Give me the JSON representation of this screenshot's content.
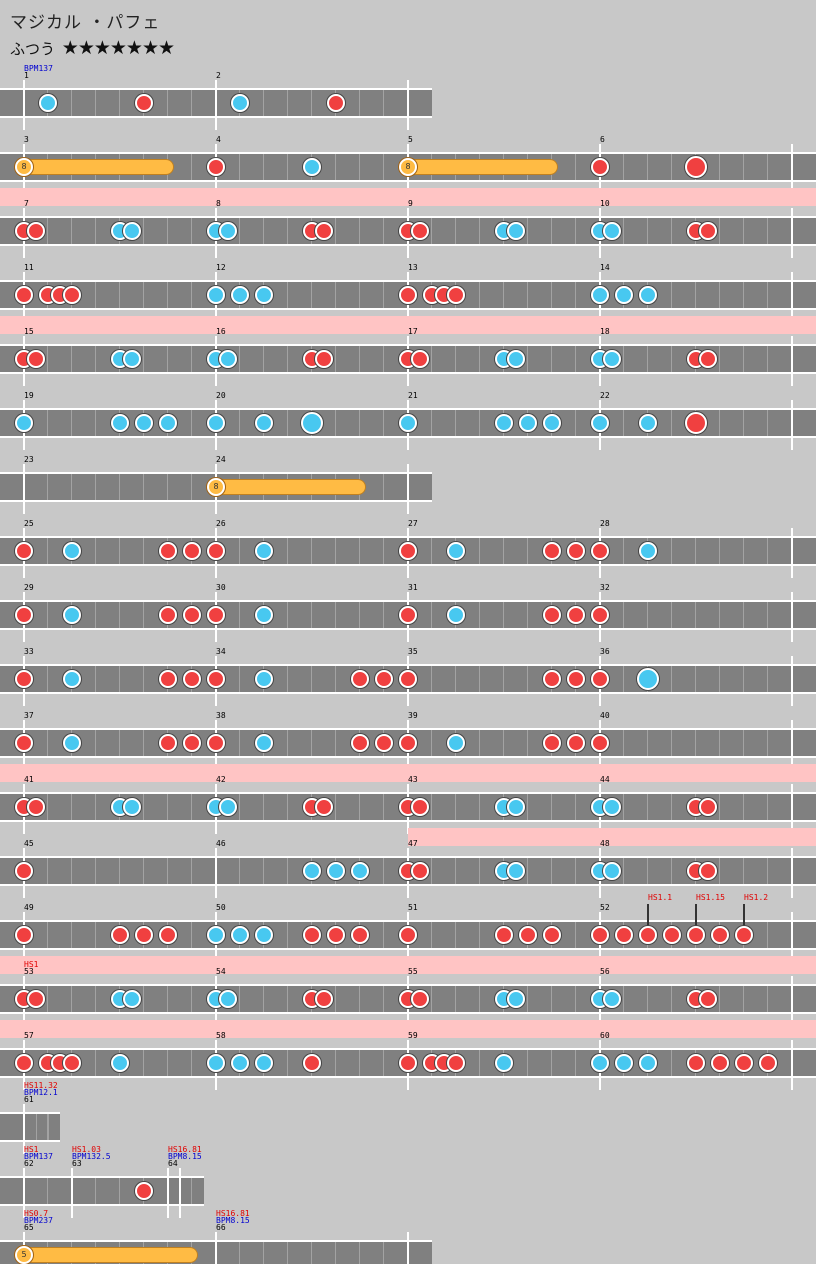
{
  "song": {
    "title": "マジカル ・パフェ",
    "difficulty": "ふつう",
    "stars": "★★★★★★★"
  },
  "rows": [
    {
      "width": 432,
      "measures": [
        "1",
        "2"
      ],
      "annotations": [
        {
          "m": 0,
          "lines": [
            {
              "t": "BPM137",
              "c": "blue"
            }
          ]
        }
      ],
      "notes": [
        [
          48,
          "k"
        ],
        [
          144,
          "d"
        ],
        [
          240,
          "k"
        ],
        [
          336,
          "d"
        ]
      ],
      "rolls": []
    },
    {
      "width": 816,
      "measures": [
        "3",
        "4",
        "5",
        "6"
      ],
      "annotations": [],
      "notes": [
        [
          216,
          "d"
        ],
        [
          312,
          "k"
        ],
        [
          600,
          "d"
        ],
        [
          696,
          "D"
        ]
      ],
      "rolls": [
        [
          24,
          174,
          "8"
        ],
        [
          408,
          558,
          "8"
        ]
      ]
    },
    {
      "width": 816,
      "pink": true,
      "measures": [
        "7",
        "8",
        "9",
        "10"
      ],
      "annotations": [],
      "notes": [
        [
          24,
          "d"
        ],
        [
          36,
          "d"
        ],
        [
          120,
          "k"
        ],
        [
          132,
          "k"
        ],
        [
          216,
          "k"
        ],
        [
          228,
          "k"
        ],
        [
          312,
          "d"
        ],
        [
          324,
          "d"
        ],
        [
          408,
          "d"
        ],
        [
          420,
          "d"
        ],
        [
          504,
          "k"
        ],
        [
          516,
          "k"
        ],
        [
          600,
          "k"
        ],
        [
          612,
          "k"
        ],
        [
          696,
          "d"
        ],
        [
          708,
          "d"
        ]
      ],
      "rolls": []
    },
    {
      "width": 816,
      "measures": [
        "11",
        "12",
        "13",
        "14"
      ],
      "annotations": [],
      "notes": [
        [
          24,
          "d"
        ],
        [
          48,
          "d"
        ],
        [
          60,
          "d"
        ],
        [
          72,
          "d"
        ],
        [
          216,
          "k"
        ],
        [
          240,
          "k"
        ],
        [
          264,
          "k"
        ],
        [
          408,
          "d"
        ],
        [
          432,
          "d"
        ],
        [
          444,
          "d"
        ],
        [
          456,
          "d"
        ],
        [
          600,
          "k"
        ],
        [
          624,
          "k"
        ],
        [
          648,
          "k"
        ]
      ],
      "rolls": []
    },
    {
      "width": 816,
      "pink": true,
      "measures": [
        "15",
        "16",
        "17",
        "18"
      ],
      "annotations": [],
      "notes": [
        [
          24,
          "d"
        ],
        [
          36,
          "d"
        ],
        [
          120,
          "k"
        ],
        [
          132,
          "k"
        ],
        [
          216,
          "k"
        ],
        [
          228,
          "k"
        ],
        [
          312,
          "d"
        ],
        [
          324,
          "d"
        ],
        [
          408,
          "d"
        ],
        [
          420,
          "d"
        ],
        [
          504,
          "k"
        ],
        [
          516,
          "k"
        ],
        [
          600,
          "k"
        ],
        [
          612,
          "k"
        ],
        [
          696,
          "d"
        ],
        [
          708,
          "d"
        ]
      ],
      "rolls": []
    },
    {
      "width": 816,
      "measures": [
        "19",
        "20",
        "21",
        "22"
      ],
      "annotations": [],
      "notes": [
        [
          24,
          "k"
        ],
        [
          120,
          "k"
        ],
        [
          144,
          "k"
        ],
        [
          168,
          "k"
        ],
        [
          216,
          "k"
        ],
        [
          264,
          "k"
        ],
        [
          312,
          "K"
        ],
        [
          408,
          "k"
        ],
        [
          504,
          "k"
        ],
        [
          528,
          "k"
        ],
        [
          552,
          "k"
        ],
        [
          600,
          "k"
        ],
        [
          648,
          "k"
        ],
        [
          696,
          "D"
        ]
      ],
      "rolls": []
    },
    {
      "width": 432,
      "measures": [
        "23",
        "24"
      ],
      "annotations": [],
      "notes": [],
      "rolls": [
        [
          216,
          366,
          "8"
        ]
      ]
    },
    {
      "width": 816,
      "measures": [
        "25",
        "26",
        "27",
        "28"
      ],
      "annotations": [],
      "notes": [
        [
          24,
          "d"
        ],
        [
          72,
          "k"
        ],
        [
          168,
          "d"
        ],
        [
          192,
          "d"
        ],
        [
          216,
          "d"
        ],
        [
          264,
          "k"
        ],
        [
          408,
          "d"
        ],
        [
          456,
          "k"
        ],
        [
          552,
          "d"
        ],
        [
          576,
          "d"
        ],
        [
          600,
          "d"
        ],
        [
          648,
          "k"
        ]
      ],
      "rolls": []
    },
    {
      "width": 816,
      "measures": [
        "29",
        "30",
        "31",
        "32"
      ],
      "annotations": [],
      "notes": [
        [
          24,
          "d"
        ],
        [
          72,
          "k"
        ],
        [
          168,
          "d"
        ],
        [
          192,
          "d"
        ],
        [
          216,
          "d"
        ],
        [
          264,
          "k"
        ],
        [
          408,
          "d"
        ],
        [
          456,
          "k"
        ],
        [
          552,
          "d"
        ],
        [
          576,
          "d"
        ],
        [
          600,
          "d"
        ]
      ],
      "rolls": []
    },
    {
      "width": 816,
      "measures": [
        "33",
        "34",
        "35",
        "36"
      ],
      "annotations": [],
      "notes": [
        [
          24,
          "d"
        ],
        [
          72,
          "k"
        ],
        [
          168,
          "d"
        ],
        [
          192,
          "d"
        ],
        [
          216,
          "d"
        ],
        [
          264,
          "k"
        ],
        [
          360,
          "d"
        ],
        [
          384,
          "d"
        ],
        [
          408,
          "d"
        ],
        [
          552,
          "d"
        ],
        [
          576,
          "d"
        ],
        [
          600,
          "d"
        ],
        [
          648,
          "K"
        ]
      ],
      "rolls": []
    },
    {
      "width": 816,
      "measures": [
        "37",
        "38",
        "39",
        "40"
      ],
      "annotations": [],
      "notes": [
        [
          24,
          "d"
        ],
        [
          72,
          "k"
        ],
        [
          168,
          "d"
        ],
        [
          192,
          "d"
        ],
        [
          216,
          "d"
        ],
        [
          264,
          "k"
        ],
        [
          360,
          "d"
        ],
        [
          384,
          "d"
        ],
        [
          408,
          "d"
        ],
        [
          456,
          "k"
        ],
        [
          552,
          "d"
        ],
        [
          576,
          "d"
        ],
        [
          600,
          "d"
        ]
      ],
      "rolls": []
    },
    {
      "width": 816,
      "pink": true,
      "measures": [
        "41",
        "42",
        "43",
        "44"
      ],
      "annotations": [],
      "notes": [
        [
          24,
          "d"
        ],
        [
          36,
          "d"
        ],
        [
          120,
          "k"
        ],
        [
          132,
          "k"
        ],
        [
          216,
          "k"
        ],
        [
          228,
          "k"
        ],
        [
          312,
          "d"
        ],
        [
          324,
          "d"
        ],
        [
          408,
          "d"
        ],
        [
          420,
          "d"
        ],
        [
          504,
          "k"
        ],
        [
          516,
          "k"
        ],
        [
          600,
          "k"
        ],
        [
          612,
          "k"
        ],
        [
          696,
          "d"
        ],
        [
          708,
          "d"
        ]
      ],
      "rolls": []
    },
    {
      "width": 816,
      "pinkFrom": 408,
      "measures": [
        "45",
        "46",
        "47",
        "48"
      ],
      "annotations": [],
      "notes": [
        [
          24,
          "d"
        ],
        [
          312,
          "k"
        ],
        [
          336,
          "k"
        ],
        [
          360,
          "k"
        ],
        [
          408,
          "d"
        ],
        [
          420,
          "d"
        ],
        [
          504,
          "k"
        ],
        [
          516,
          "k"
        ],
        [
          600,
          "k"
        ],
        [
          612,
          "k"
        ],
        [
          696,
          "d"
        ],
        [
          708,
          "d"
        ]
      ],
      "rolls": []
    },
    {
      "width": 816,
      "measures": [
        "49",
        "50",
        "51",
        "52"
      ],
      "annotations": [
        {
          "x": 648,
          "lines": [
            {
              "t": "HS1.1",
              "c": "red"
            }
          ],
          "hs": true
        },
        {
          "x": 696,
          "lines": [
            {
              "t": "HS1.15",
              "c": "red"
            }
          ],
          "hs": true
        },
        {
          "x": 744,
          "lines": [
            {
              "t": "HS1.2",
              "c": "red"
            }
          ],
          "hs": true
        }
      ],
      "notes": [
        [
          24,
          "d"
        ],
        [
          120,
          "d"
        ],
        [
          144,
          "d"
        ],
        [
          168,
          "d"
        ],
        [
          216,
          "k"
        ],
        [
          240,
          "k"
        ],
        [
          264,
          "k"
        ],
        [
          312,
          "d"
        ],
        [
          336,
          "d"
        ],
        [
          360,
          "d"
        ],
        [
          408,
          "d"
        ],
        [
          504,
          "d"
        ],
        [
          528,
          "d"
        ],
        [
          552,
          "d"
        ],
        [
          600,
          "d"
        ],
        [
          624,
          "d"
        ],
        [
          648,
          "d"
        ],
        [
          672,
          "d"
        ],
        [
          696,
          "d"
        ],
        [
          720,
          "d"
        ],
        [
          744,
          "d"
        ]
      ],
      "rolls": []
    },
    {
      "width": 816,
      "pink": true,
      "measures": [
        "53",
        "54",
        "55",
        "56"
      ],
      "annotations": [
        {
          "m": 0,
          "lines": [
            {
              "t": "HS1",
              "c": "red"
            }
          ]
        }
      ],
      "notes": [
        [
          24,
          "d"
        ],
        [
          36,
          "d"
        ],
        [
          120,
          "k"
        ],
        [
          132,
          "k"
        ],
        [
          216,
          "k"
        ],
        [
          228,
          "k"
        ],
        [
          312,
          "d"
        ],
        [
          324,
          "d"
        ],
        [
          408,
          "d"
        ],
        [
          420,
          "d"
        ],
        [
          504,
          "k"
        ],
        [
          516,
          "k"
        ],
        [
          600,
          "k"
        ],
        [
          612,
          "k"
        ],
        [
          696,
          "d"
        ],
        [
          708,
          "d"
        ]
      ],
      "rolls": []
    },
    {
      "width": 816,
      "pink": true,
      "measures": [
        "57",
        "58",
        "59",
        "60"
      ],
      "annotations": [],
      "notes": [
        [
          24,
          "d"
        ],
        [
          48,
          "d"
        ],
        [
          60,
          "d"
        ],
        [
          72,
          "d"
        ],
        [
          120,
          "k"
        ],
        [
          216,
          "k"
        ],
        [
          240,
          "k"
        ],
        [
          264,
          "k"
        ],
        [
          312,
          "d"
        ],
        [
          408,
          "d"
        ],
        [
          432,
          "d"
        ],
        [
          444,
          "d"
        ],
        [
          456,
          "d"
        ],
        [
          504,
          "k"
        ],
        [
          600,
          "k"
        ],
        [
          624,
          "k"
        ],
        [
          648,
          "k"
        ],
        [
          696,
          "d"
        ],
        [
          720,
          "d"
        ],
        [
          744,
          "d"
        ],
        [
          768,
          "d"
        ]
      ],
      "rolls": []
    },
    {
      "width": 60,
      "measures": [
        "61"
      ],
      "annotations": [
        {
          "m": 0,
          "lines": [
            {
              "t": "HS11.32",
              "c": "red"
            },
            {
              "t": "BPM12.1",
              "c": "blue"
            }
          ]
        }
      ],
      "notes": [],
      "rolls": []
    },
    {
      "width": 204,
      "custom": [
        24,
        72,
        168
      ],
      "measures": [
        "62",
        "63",
        "64"
      ],
      "annotations": [
        {
          "m": 0,
          "lines": [
            {
              "t": "HS1",
              "c": "red"
            },
            {
              "t": "BPM137",
              "c": "blue"
            }
          ]
        },
        {
          "m": 1,
          "lines": [
            {
              "t": "HS1.03",
              "c": "red"
            },
            {
              "t": "BPM132.5",
              "c": "blue"
            }
          ]
        },
        {
          "m": 2,
          "lines": [
            {
              "t": "HS16.81",
              "c": "red"
            },
            {
              "t": "BPM8.15",
              "c": "blue"
            }
          ]
        }
      ],
      "notes": [
        [
          144,
          "d"
        ]
      ],
      "rolls": []
    },
    {
      "width": 432,
      "measures": [
        "65",
        "66"
      ],
      "annotations": [
        {
          "m": 0,
          "lines": [
            {
              "t": "HS0.7",
              "c": "red"
            },
            {
              "t": "BPM237",
              "c": "blue"
            }
          ]
        },
        {
          "m": 1,
          "lines": [
            {
              "t": "HS16.81",
              "c": "red"
            },
            {
              "t": "BPM8.15",
              "c": "blue"
            }
          ]
        }
      ],
      "notes": [],
      "rolls": [
        [
          24,
          198,
          "5"
        ]
      ]
    }
  ]
}
